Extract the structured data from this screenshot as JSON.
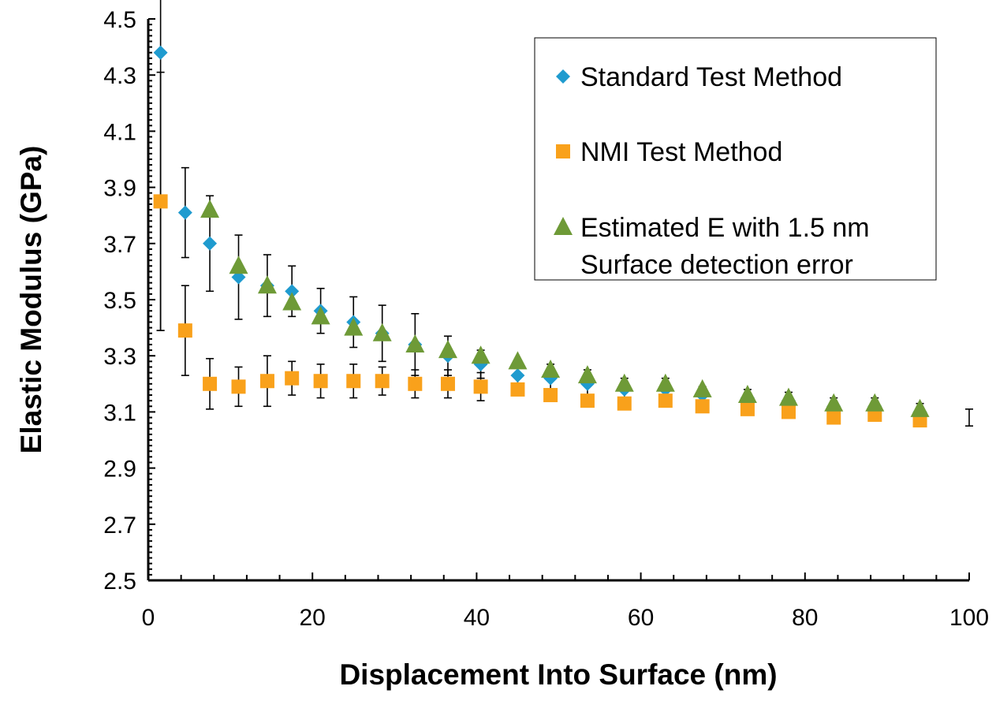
{
  "chart_data": {
    "type": "scatter",
    "title": "",
    "xlabel": "Displacement Into Surface (nm)",
    "ylabel": "Elastic Modulus (GPa)",
    "xlim": [
      0,
      100
    ],
    "ylim": [
      2.5,
      4.5
    ],
    "xticks": [
      "0",
      "20",
      "40",
      "60",
      "80",
      "100"
    ],
    "yticks": [
      "2.5",
      "2.7",
      "2.9",
      "3.1",
      "3.3",
      "3.5",
      "3.7",
      "3.9",
      "4.1",
      "4.3",
      "4.5"
    ],
    "grid": false,
    "legend_position": "top-right",
    "series": [
      {
        "name": "Standard Test Method",
        "marker": "diamond",
        "color": "#1F9BCF",
        "points": [
          {
            "x": 1.5,
            "y": 4.38,
            "err": 0.99
          },
          {
            "x": 4.5,
            "y": 3.81,
            "err": 0.16
          },
          {
            "x": 7.5,
            "y": 3.7,
            "err": 0.17
          },
          {
            "x": 11,
            "y": 3.58,
            "err": 0.15
          },
          {
            "x": 14.5,
            "y": 3.55,
            "err": 0.11
          },
          {
            "x": 17.5,
            "y": 3.53,
            "err": 0.09
          },
          {
            "x": 21,
            "y": 3.46,
            "err": 0.08
          },
          {
            "x": 25,
            "y": 3.42,
            "err": 0.09
          },
          {
            "x": 28.5,
            "y": 3.38,
            "err": 0.1
          },
          {
            "x": 32.5,
            "y": 3.34,
            "err": 0.11
          },
          {
            "x": 36.5,
            "y": 3.3,
            "err": 0.07
          },
          {
            "x": 40.5,
            "y": 3.27,
            "err": 0.05
          },
          {
            "x": 45,
            "y": 3.23,
            "err": 0.05
          },
          {
            "x": 49,
            "y": 3.22,
            "err": 0.05
          },
          {
            "x": 53.5,
            "y": 3.2,
            "err": 0.05
          },
          {
            "x": 58,
            "y": 3.18,
            "err": 0.04
          },
          {
            "x": 63,
            "y": 3.18,
            "err": 0.04
          },
          {
            "x": 67.5,
            "y": 3.16,
            "err": 0.03
          },
          {
            "x": 73,
            "y": 3.15,
            "err": 0.03
          },
          {
            "x": 78,
            "y": 3.14,
            "err": 0.03
          },
          {
            "x": 83.5,
            "y": 3.12,
            "err": 0.03
          },
          {
            "x": 88.5,
            "y": 3.12,
            "err": 0.03
          },
          {
            "x": 94,
            "y": 3.1,
            "err": 0.03
          },
          {
            "x": 100,
            "y": 3.08,
            "err": 0.03
          }
        ]
      },
      {
        "name": "NMI Test Method",
        "marker": "square",
        "color": "#F9A11B",
        "points": [
          {
            "x": 1.5,
            "y": 3.85,
            "err": 0.46
          },
          {
            "x": 4.5,
            "y": 3.39,
            "err": 0.16
          },
          {
            "x": 7.5,
            "y": 3.2,
            "err": 0.09
          },
          {
            "x": 11,
            "y": 3.19,
            "err": 0.07
          },
          {
            "x": 14.5,
            "y": 3.21,
            "err": 0.09
          },
          {
            "x": 17.5,
            "y": 3.22,
            "err": 0.06
          },
          {
            "x": 21,
            "y": 3.21,
            "err": 0.06
          },
          {
            "x": 25,
            "y": 3.21,
            "err": 0.06
          },
          {
            "x": 28.5,
            "y": 3.21,
            "err": 0.05
          },
          {
            "x": 32.5,
            "y": 3.2,
            "err": 0.05
          },
          {
            "x": 36.5,
            "y": 3.2,
            "err": 0.05
          },
          {
            "x": 40.5,
            "y": 3.19,
            "err": 0.05
          },
          {
            "x": 45,
            "y": 3.18,
            "err": 0.02
          },
          {
            "x": 49,
            "y": 3.16,
            "err": 0.02
          },
          {
            "x": 53.5,
            "y": 3.14,
            "err": 0.02
          },
          {
            "x": 58,
            "y": 3.13,
            "err": 0.02
          },
          {
            "x": 63,
            "y": 3.14,
            "err": 0.02
          },
          {
            "x": 67.5,
            "y": 3.12,
            "err": 0.02
          },
          {
            "x": 73,
            "y": 3.11,
            "err": 0.02
          },
          {
            "x": 78,
            "y": 3.1,
            "err": 0.02
          },
          {
            "x": 83.5,
            "y": 3.08,
            "err": 0.02
          },
          {
            "x": 88.5,
            "y": 3.09,
            "err": 0.02
          },
          {
            "x": 94,
            "y": 3.07,
            "err": 0.02
          }
        ]
      },
      {
        "name": "Estimated E with 1.5 nm Surface detection error",
        "legend_lines": [
          "Estimated E with 1.5 nm",
          "Surface detection error"
        ],
        "marker": "triangle",
        "color": "#6E9A37",
        "points": [
          {
            "x": 7.5,
            "y": 3.82
          },
          {
            "x": 11,
            "y": 3.62
          },
          {
            "x": 14.5,
            "y": 3.55
          },
          {
            "x": 17.5,
            "y": 3.49
          },
          {
            "x": 21,
            "y": 3.44
          },
          {
            "x": 25,
            "y": 3.4
          },
          {
            "x": 28.5,
            "y": 3.38
          },
          {
            "x": 32.5,
            "y": 3.34
          },
          {
            "x": 36.5,
            "y": 3.32
          },
          {
            "x": 40.5,
            "y": 3.3
          },
          {
            "x": 45,
            "y": 3.28
          },
          {
            "x": 49,
            "y": 3.25
          },
          {
            "x": 53.5,
            "y": 3.23
          },
          {
            "x": 58,
            "y": 3.2
          },
          {
            "x": 63,
            "y": 3.2
          },
          {
            "x": 67.5,
            "y": 3.18
          },
          {
            "x": 73,
            "y": 3.16
          },
          {
            "x": 78,
            "y": 3.15
          },
          {
            "x": 83.5,
            "y": 3.13
          },
          {
            "x": 88.5,
            "y": 3.13
          },
          {
            "x": 94,
            "y": 3.11
          }
        ]
      }
    ]
  }
}
